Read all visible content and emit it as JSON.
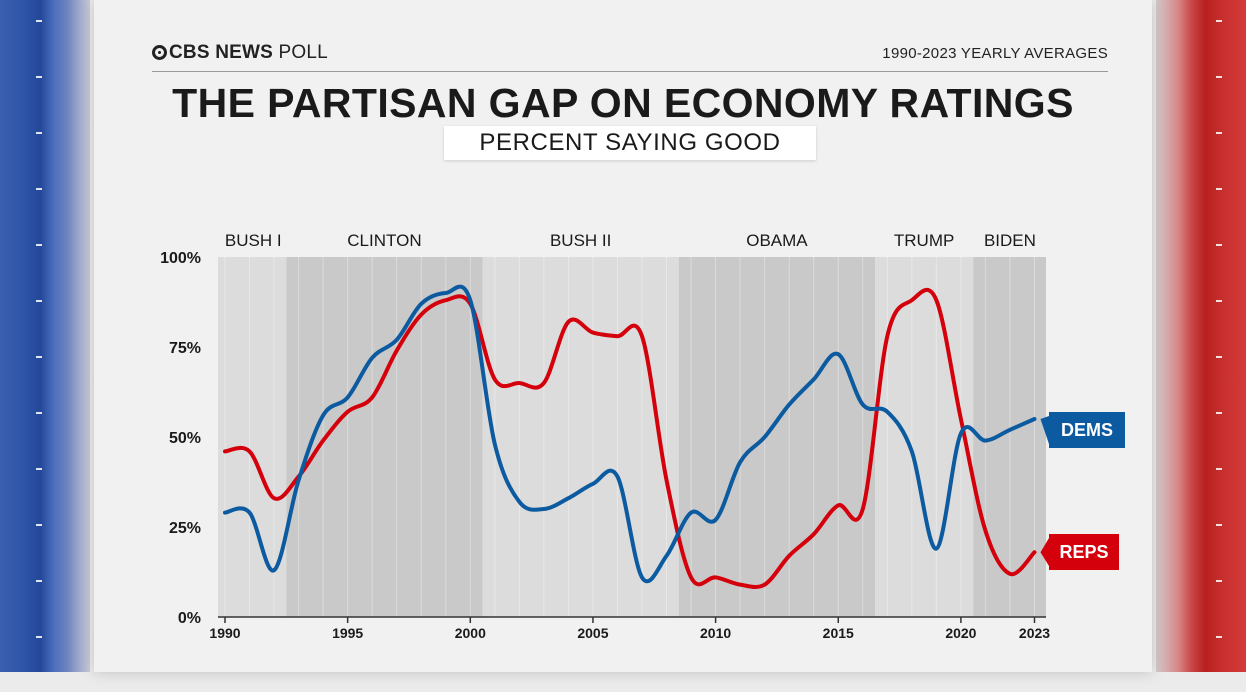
{
  "header": {
    "logo_brand": "CBS NEWS",
    "logo_suffix": "POLL",
    "range_label": "1990-2023 YEARLY AVERAGES",
    "title": "THE PARTISAN GAP ON ECONOMY RATINGS",
    "subtitle": "PERCENT SAYING GOOD"
  },
  "colors": {
    "dems": "#0c5aa0",
    "reps": "#d4000c",
    "band_light": "#dcdcdc",
    "band_dark": "#c9c9c9"
  },
  "chart_data": {
    "type": "line",
    "title": "THE PARTISAN GAP ON ECONOMY RATINGS",
    "subtitle": "PERCENT SAYING GOOD",
    "xlabel": "",
    "ylabel": "",
    "xlim": [
      1990,
      2023.5
    ],
    "ylim": [
      0,
      100
    ],
    "x_ticks": [
      1990,
      1995,
      2000,
      2005,
      2010,
      2015,
      2020,
      2023
    ],
    "y_ticks": [
      {
        "value": 0,
        "label": "0%"
      },
      {
        "value": 25,
        "label": "25%"
      },
      {
        "value": 50,
        "label": "50%"
      },
      {
        "value": 75,
        "label": "75%"
      },
      {
        "value": 100,
        "label": "100%"
      }
    ],
    "eras": [
      {
        "label": "BUSH I",
        "start": 1989.6,
        "end": 1992.5,
        "shade": "light"
      },
      {
        "label": "CLINTON",
        "start": 1992.5,
        "end": 2000.5,
        "shade": "dark"
      },
      {
        "label": "BUSH II",
        "start": 2000.5,
        "end": 2008.5,
        "shade": "light"
      },
      {
        "label": "OBAMA",
        "start": 2008.5,
        "end": 2016.5,
        "shade": "dark"
      },
      {
        "label": "TRUMP",
        "start": 2016.5,
        "end": 2020.5,
        "shade": "light"
      },
      {
        "label": "BIDEN",
        "start": 2020.5,
        "end": 2023.5,
        "shade": "dark"
      }
    ],
    "x": [
      1990,
      1991,
      1992,
      1993,
      1994,
      1995,
      1996,
      1997,
      1998,
      1999,
      2000,
      2001,
      2002,
      2003,
      2004,
      2005,
      2006,
      2007,
      2008,
      2009,
      2010,
      2011,
      2012,
      2013,
      2014,
      2015,
      2016,
      2017,
      2018,
      2019,
      2020,
      2021,
      2022,
      2023
    ],
    "series": [
      {
        "name": "DEMS",
        "label": "DEMS",
        "color": "#0c5aa0",
        "values": [
          29,
          29,
          13,
          38,
          56,
          61,
          72,
          77,
          87,
          90,
          88,
          48,
          32,
          30,
          33,
          37,
          39,
          11,
          17,
          29,
          27,
          43,
          50,
          59,
          66,
          73,
          59,
          57,
          46,
          19,
          51,
          49,
          52,
          55
        ]
      },
      {
        "name": "REPS",
        "label": "REPS",
        "color": "#d4000c",
        "values": [
          46,
          46,
          33,
          39,
          49,
          57,
          61,
          74,
          84,
          88,
          87,
          66,
          65,
          65,
          82,
          79,
          78,
          78,
          38,
          11,
          11,
          9,
          9,
          17,
          23,
          31,
          30,
          78,
          88,
          88,
          55,
          24,
          12,
          18
        ]
      }
    ]
  }
}
